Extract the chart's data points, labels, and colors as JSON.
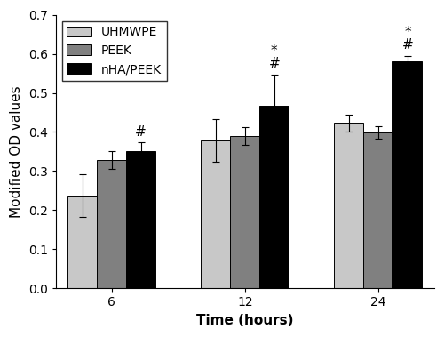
{
  "time_labels": [
    "6",
    "12",
    "24"
  ],
  "groups": [
    "UHMWPE",
    "PEEK",
    "nHA/PEEK"
  ],
  "bar_colors": [
    "#c8c8c8",
    "#808080",
    "#000000"
  ],
  "values": {
    "UHMWPE": [
      0.237,
      0.379,
      0.423
    ],
    "PEEK": [
      0.328,
      0.39,
      0.399
    ],
    "nHA/PEEK": [
      0.352,
      0.467,
      0.58
    ]
  },
  "errors": {
    "UHMWPE": [
      0.055,
      0.055,
      0.022
    ],
    "PEEK": [
      0.022,
      0.022,
      0.015
    ],
    "nHA/PEEK": [
      0.022,
      0.08,
      0.015
    ]
  },
  "ylabel": "Modified OD values",
  "xlabel": "Time (hours)",
  "ylim": [
    0.0,
    0.7
  ],
  "yticks": [
    0.0,
    0.1,
    0.2,
    0.3,
    0.4,
    0.5,
    0.6,
    0.7
  ],
  "bar_width": 0.22,
  "legend_loc": "upper left",
  "axis_fontsize": 11,
  "tick_fontsize": 10,
  "legend_fontsize": 10,
  "annot_fontsize": 11
}
